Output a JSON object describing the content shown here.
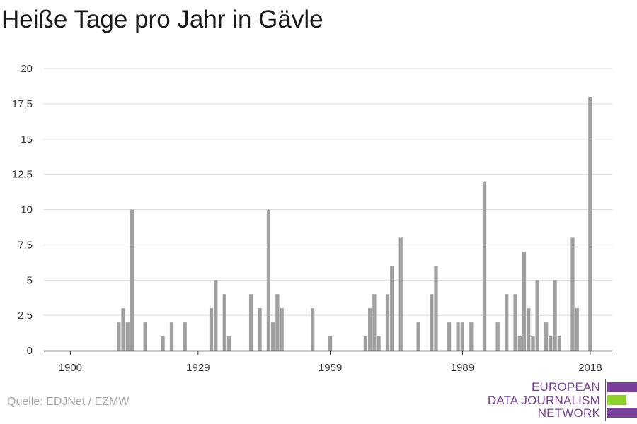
{
  "title": "Heiße Tage pro Jahr in Gävle",
  "source": "Quelle: EDJNet / EZMW",
  "logo": {
    "line1": "EUROPEAN",
    "line2": "DATA JOURNALISM",
    "line3": "NETWORK",
    "purple": "#7a3f9a",
    "green": "#8fd12b"
  },
  "colors": {
    "bar": "#a0a0a0",
    "grid": "#dcdcdc",
    "axis": "#333333",
    "text": "#333333"
  },
  "chart_data": {
    "type": "bar",
    "title": "Heiße Tage pro Jahr in Gävle",
    "xlabel": "",
    "ylabel": "",
    "xlim": [
      1894,
      2023
    ],
    "ylim": [
      0,
      20
    ],
    "yticks": [
      0,
      2.5,
      5,
      7.5,
      10,
      12.5,
      15,
      17.5,
      20
    ],
    "ytick_labels": [
      "0",
      "2,5",
      "5",
      "7,5",
      "10",
      "12,5",
      "15",
      "17,5",
      "20"
    ],
    "xticks": [
      1900,
      1929,
      1959,
      1989,
      2018
    ],
    "xtick_labels": [
      "1900",
      "1929",
      "1959",
      "1989",
      "2018"
    ],
    "grid": true,
    "points": [
      {
        "x": 1911,
        "y": 2
      },
      {
        "x": 1912,
        "y": 3
      },
      {
        "x": 1913,
        "y": 2
      },
      {
        "x": 1914,
        "y": 10
      },
      {
        "x": 1917,
        "y": 2
      },
      {
        "x": 1921,
        "y": 1
      },
      {
        "x": 1923,
        "y": 2
      },
      {
        "x": 1926,
        "y": 2
      },
      {
        "x": 1932,
        "y": 3
      },
      {
        "x": 1933,
        "y": 5
      },
      {
        "x": 1935,
        "y": 4
      },
      {
        "x": 1936,
        "y": 1
      },
      {
        "x": 1941,
        "y": 4
      },
      {
        "x": 1943,
        "y": 3
      },
      {
        "x": 1945,
        "y": 10
      },
      {
        "x": 1946,
        "y": 2
      },
      {
        "x": 1947,
        "y": 4
      },
      {
        "x": 1948,
        "y": 3
      },
      {
        "x": 1955,
        "y": 3
      },
      {
        "x": 1959,
        "y": 1
      },
      {
        "x": 1967,
        "y": 1
      },
      {
        "x": 1968,
        "y": 3
      },
      {
        "x": 1969,
        "y": 4
      },
      {
        "x": 1970,
        "y": 1
      },
      {
        "x": 1972,
        "y": 4
      },
      {
        "x": 1973,
        "y": 6
      },
      {
        "x": 1975,
        "y": 8
      },
      {
        "x": 1979,
        "y": 2
      },
      {
        "x": 1982,
        "y": 4
      },
      {
        "x": 1983,
        "y": 6
      },
      {
        "x": 1986,
        "y": 2
      },
      {
        "x": 1988,
        "y": 2
      },
      {
        "x": 1989,
        "y": 2
      },
      {
        "x": 1991,
        "y": 2
      },
      {
        "x": 1994,
        "y": 12
      },
      {
        "x": 1997,
        "y": 2
      },
      {
        "x": 1999,
        "y": 4
      },
      {
        "x": 2001,
        "y": 4
      },
      {
        "x": 2002,
        "y": 1
      },
      {
        "x": 2003,
        "y": 7
      },
      {
        "x": 2004,
        "y": 3
      },
      {
        "x": 2005,
        "y": 1
      },
      {
        "x": 2006,
        "y": 5
      },
      {
        "x": 2008,
        "y": 2
      },
      {
        "x": 2009,
        "y": 1
      },
      {
        "x": 2010,
        "y": 5
      },
      {
        "x": 2011,
        "y": 1
      },
      {
        "x": 2014,
        "y": 8
      },
      {
        "x": 2015,
        "y": 3
      },
      {
        "x": 2018,
        "y": 18
      }
    ]
  }
}
